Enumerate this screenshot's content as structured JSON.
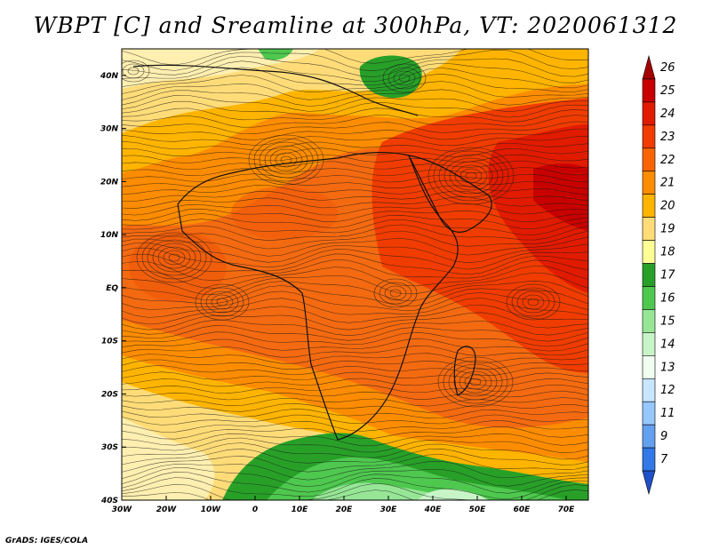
{
  "title": "WBPT [C] and Sreamline at 300hPa, VT: 2020061312",
  "footer": "GrADS: IGES/COLA",
  "chart_data": {
    "type": "heatmap",
    "title": "WBPT [C] and Sreamline at 300hPa, VT: 2020061312",
    "variable": "WBPT [C]",
    "level": "300hPa",
    "valid_time": "2020061312",
    "lon_range": [
      -30,
      75
    ],
    "lat_range": [
      -40,
      45
    ],
    "x_ticks": [
      "30W",
      "20W",
      "10W",
      "0",
      "10E",
      "20E",
      "30E",
      "40E",
      "50E",
      "60E",
      "70E"
    ],
    "x_tick_values": [
      -30,
      -20,
      -10,
      0,
      10,
      20,
      30,
      40,
      50,
      60,
      70
    ],
    "y_ticks": [
      "40N",
      "30N",
      "20N",
      "10N",
      "EQ",
      "10S",
      "20S",
      "30S",
      "40S"
    ],
    "y_tick_values": [
      40,
      30,
      20,
      10,
      0,
      -10,
      -20,
      -30,
      -40
    ],
    "colorbar": {
      "labels": [
        "26",
        "25",
        "24",
        "23",
        "22",
        "21",
        "20",
        "19",
        "18",
        "17",
        "16",
        "15",
        "14",
        "13",
        "12",
        "11",
        "9",
        "7"
      ],
      "colors": [
        "#a50000",
        "#c80000",
        "#e11b00",
        "#f03c00",
        "#fa6400",
        "#fd8c00",
        "#ffb400",
        "#ffdc78",
        "#ffff96",
        "#28a028",
        "#4ec84e",
        "#96e696",
        "#c8f5c8",
        "#f0fff0",
        "#c8e6ff",
        "#96c8ff",
        "#64a0f0",
        "#3278e6",
        "#1e50c8"
      ]
    }
  }
}
